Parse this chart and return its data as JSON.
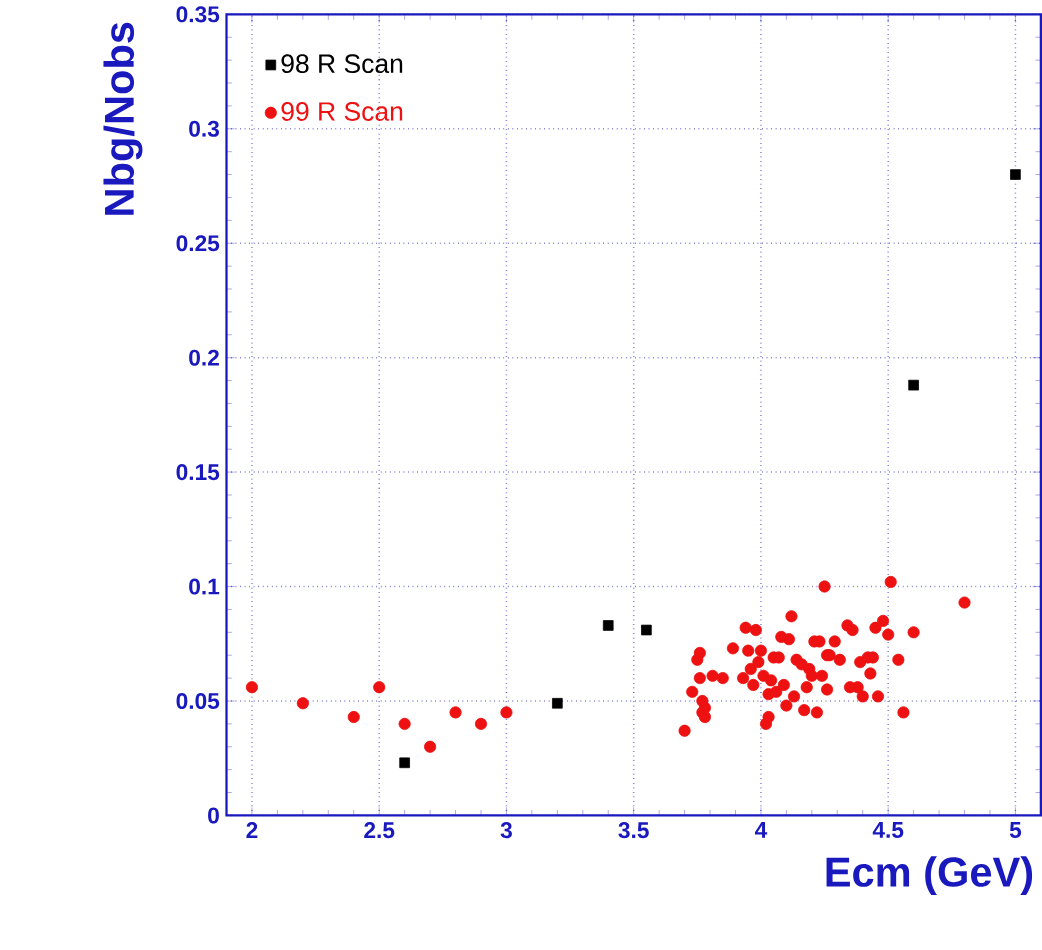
{
  "chart_data": {
    "type": "scatter",
    "xlabel": "Ecm (GeV)",
    "ylabel": "Nbg/Nobs",
    "xlim": [
      1.9,
      5.1
    ],
    "ylim": [
      0,
      0.35
    ],
    "xticks": [
      2,
      2.5,
      3,
      3.5,
      4,
      4.5,
      5
    ],
    "yticks": [
      0,
      0.05,
      0.1,
      0.15,
      0.2,
      0.25,
      0.3,
      0.35
    ],
    "grid": true,
    "legend": "top left",
    "series": [
      {
        "name": "98 R Scan",
        "color": "#000000",
        "marker": "square",
        "x": [
          2.6,
          3.2,
          3.4,
          3.55,
          4.6,
          5.0
        ],
        "values": [
          0.023,
          0.049,
          0.083,
          0.081,
          0.188,
          0.28
        ]
      },
      {
        "name": "99 R Scan",
        "color": "#ee1111",
        "marker": "circle",
        "x": [
          2.0,
          2.2,
          2.4,
          2.5,
          2.6,
          2.7,
          2.8,
          2.9,
          3.0,
          3.7,
          3.73,
          3.75,
          3.76,
          3.76,
          3.77,
          3.77,
          3.78,
          3.78,
          3.81,
          3.85,
          3.89,
          3.93,
          3.94,
          3.95,
          3.96,
          3.97,
          3.98,
          3.99,
          4.0,
          4.01,
          4.02,
          4.03,
          4.03,
          4.04,
          4.05,
          4.06,
          4.07,
          4.08,
          4.09,
          4.1,
          4.11,
          4.12,
          4.13,
          4.14,
          4.16,
          4.17,
          4.18,
          4.19,
          4.2,
          4.21,
          4.22,
          4.23,
          4.24,
          4.25,
          4.26,
          4.26,
          4.27,
          4.29,
          4.31,
          4.34,
          4.35,
          4.36,
          4.38,
          4.39,
          4.4,
          4.42,
          4.43,
          4.44,
          4.45,
          4.46,
          4.48,
          4.5,
          4.51,
          4.54,
          4.56,
          4.6,
          4.8
        ],
        "values": [
          0.056,
          0.049,
          0.043,
          0.056,
          0.04,
          0.03,
          0.045,
          0.04,
          0.045,
          0.037,
          0.054,
          0.068,
          0.071,
          0.06,
          0.05,
          0.045,
          0.043,
          0.047,
          0.061,
          0.06,
          0.073,
          0.06,
          0.082,
          0.072,
          0.064,
          0.057,
          0.081,
          0.067,
          0.072,
          0.061,
          0.04,
          0.043,
          0.053,
          0.059,
          0.069,
          0.054,
          0.069,
          0.078,
          0.057,
          0.048,
          0.077,
          0.087,
          0.052,
          0.068,
          0.066,
          0.046,
          0.056,
          0.064,
          0.061,
          0.076,
          0.045,
          0.076,
          0.061,
          0.1,
          0.07,
          0.055,
          0.07,
          0.076,
          0.068,
          0.083,
          0.056,
          0.081,
          0.056,
          0.067,
          0.052,
          0.069,
          0.062,
          0.069,
          0.082,
          0.052,
          0.085,
          0.079,
          0.102,
          0.068,
          0.045,
          0.08,
          0.093
        ]
      }
    ]
  }
}
